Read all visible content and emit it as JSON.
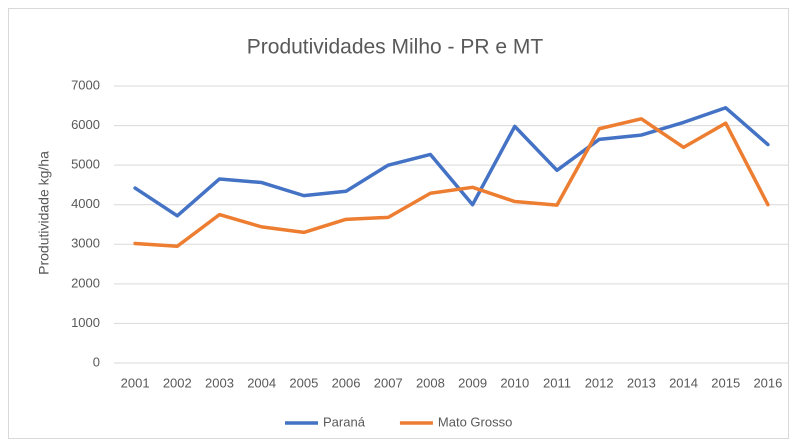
{
  "chart_data": {
    "type": "line",
    "title": "Produtividades Milho - PR e MT",
    "y_label": "Produtividade kg/ha",
    "categories": [
      "2001",
      "2002",
      "2003",
      "2004",
      "2005",
      "2006",
      "2007",
      "2008",
      "2009",
      "2010",
      "2011",
      "2012",
      "2013",
      "2014",
      "2015",
      "2016"
    ],
    "series": [
      {
        "name": "Paraná",
        "color": "#4472c4",
        "values": [
          4420,
          3720,
          4650,
          4560,
          4230,
          4340,
          5000,
          5270,
          4000,
          5980,
          4870,
          5650,
          5760,
          6080,
          6450,
          5520
        ]
      },
      {
        "name": "Mato Grosso",
        "color": "#ed7d31",
        "values": [
          3020,
          2950,
          3750,
          3440,
          3300,
          3630,
          3680,
          4290,
          4440,
          4080,
          3990,
          5920,
          6170,
          5450,
          6060,
          4000
        ]
      }
    ],
    "ylim": [
      0,
      7000
    ],
    "yticks": [
      0,
      1000,
      2000,
      3000,
      4000,
      5000,
      6000,
      7000
    ],
    "grid": true,
    "legend": "bottom"
  }
}
